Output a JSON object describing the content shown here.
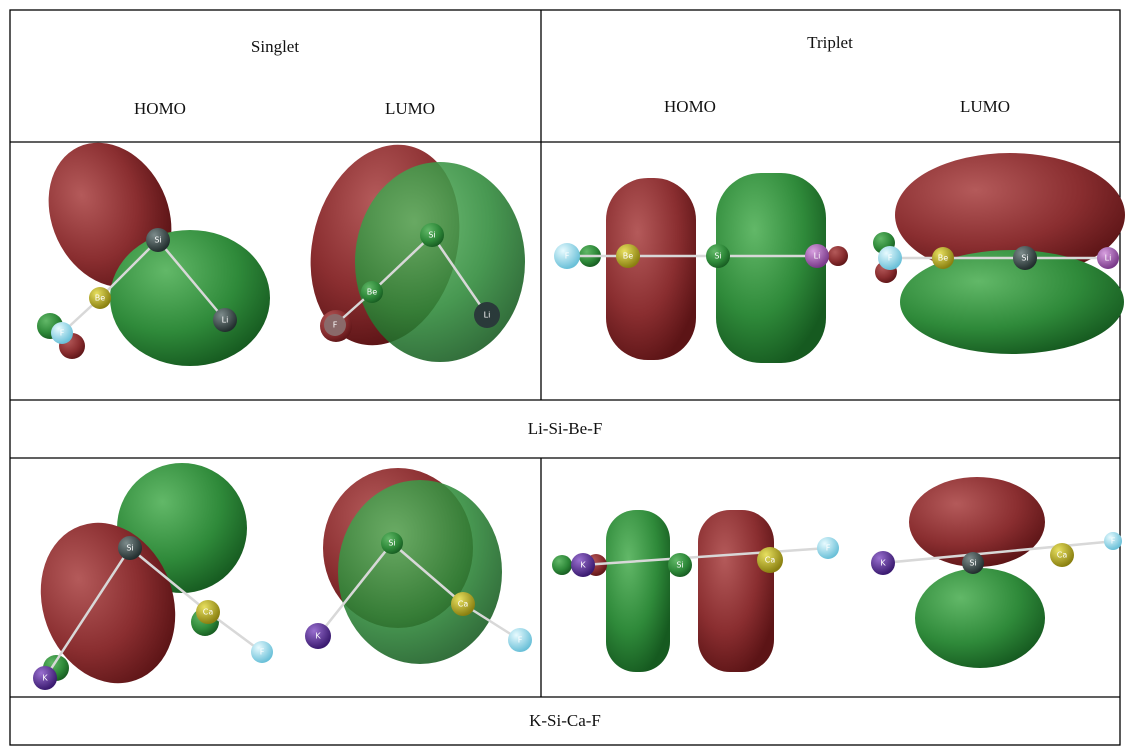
{
  "header": {
    "groups": [
      "Singlet",
      "Triplet"
    ],
    "columns": [
      "HOMO",
      "LUMO",
      "HOMO",
      "LUMO"
    ]
  },
  "molecules": [
    {
      "name": "Li-Si-Be-F",
      "panels": [
        {
          "atoms": [
            "Si",
            "Be",
            "F",
            "Li"
          ]
        },
        {
          "atoms": [
            "Si",
            "Be",
            "F",
            "Li"
          ]
        },
        {
          "atoms": [
            "F",
            "Be",
            "Si",
            "Li"
          ]
        },
        {
          "atoms": [
            "F",
            "Be",
            "Si",
            "Li"
          ]
        }
      ]
    },
    {
      "name": "K-Si-Ca-F",
      "panels": [
        {
          "atoms": [
            "Si",
            "K",
            "Ca",
            "F"
          ]
        },
        {
          "atoms": [
            "Si",
            "K",
            "Ca",
            "F"
          ]
        },
        {
          "atoms": [
            "K",
            "Si",
            "Ca",
            "F"
          ]
        },
        {
          "atoms": [
            "K",
            "Si",
            "Ca",
            "F"
          ]
        }
      ]
    }
  ]
}
